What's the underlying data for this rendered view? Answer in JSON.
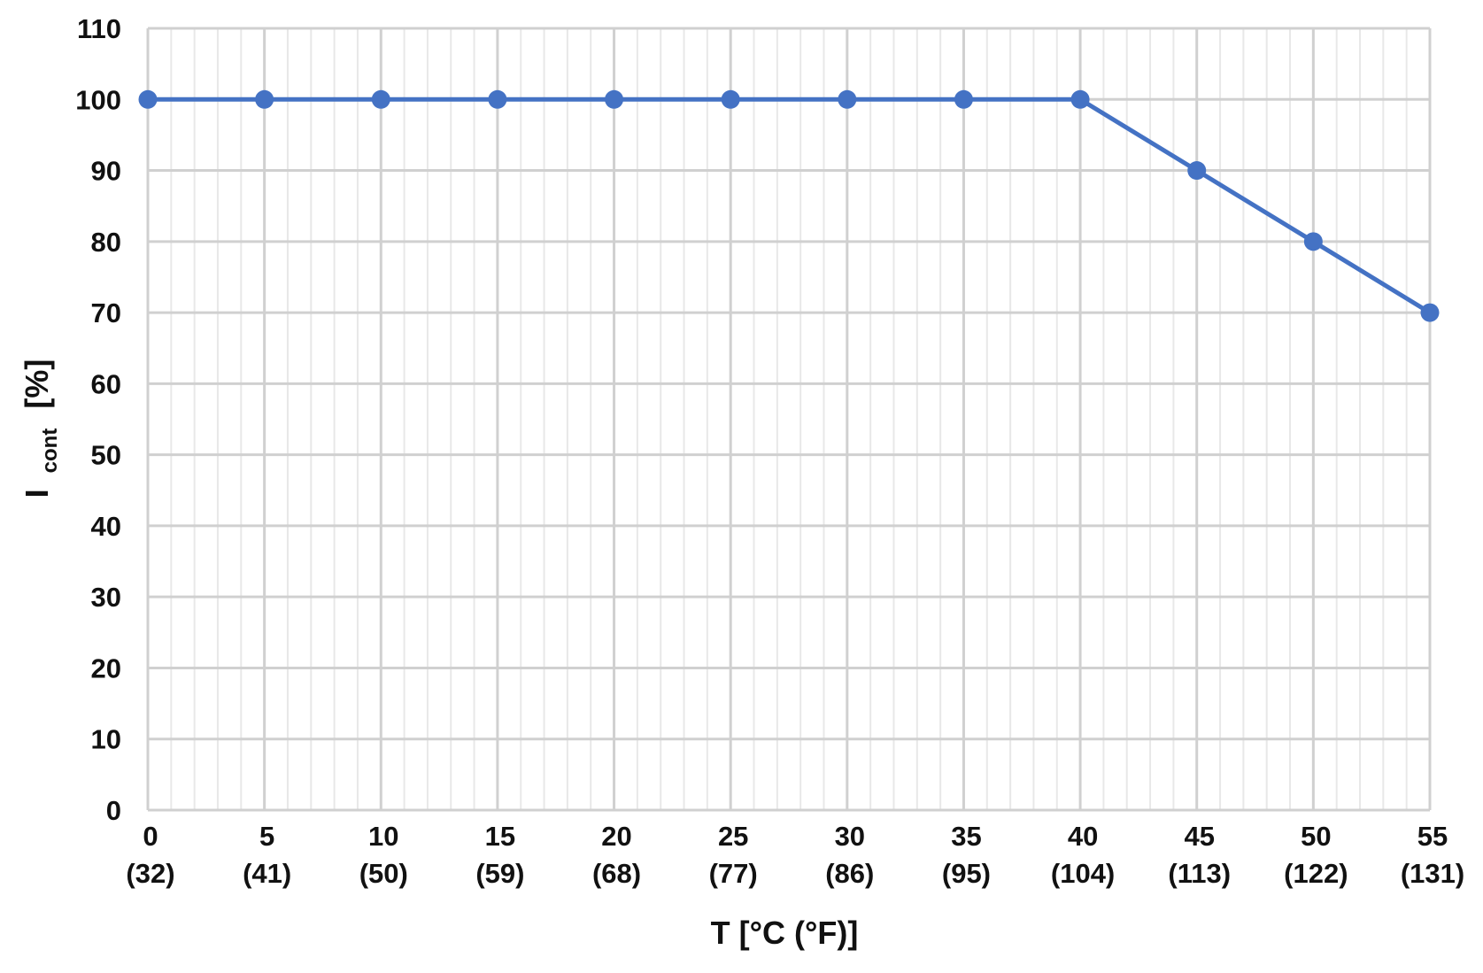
{
  "chart_data": {
    "type": "line",
    "title": "",
    "xlabel": "T [°C (°F)]",
    "ylabel": {
      "main": "I",
      "subscript": "cont",
      "unit": "[%]"
    },
    "xlim": [
      0,
      55
    ],
    "ylim": [
      0,
      110
    ],
    "x_major_step": 5,
    "x_minor_step": 1,
    "y_major_step": 10,
    "y_minor_step": 10,
    "grid": true,
    "legend": "none",
    "x_tick_labels": [
      {
        "value": 0,
        "celsius": "0",
        "fahrenheit": "(32)"
      },
      {
        "value": 5,
        "celsius": "5",
        "fahrenheit": "(41)"
      },
      {
        "value": 10,
        "celsius": "10",
        "fahrenheit": "(50)"
      },
      {
        "value": 15,
        "celsius": "15",
        "fahrenheit": "(59)"
      },
      {
        "value": 20,
        "celsius": "20",
        "fahrenheit": "(68)"
      },
      {
        "value": 25,
        "celsius": "25",
        "fahrenheit": "(77)"
      },
      {
        "value": 30,
        "celsius": "30",
        "fahrenheit": "(86)"
      },
      {
        "value": 35,
        "celsius": "35",
        "fahrenheit": "(95)"
      },
      {
        "value": 40,
        "celsius": "40",
        "fahrenheit": "(104)"
      },
      {
        "value": 45,
        "celsius": "45",
        "fahrenheit": "(113)"
      },
      {
        "value": 50,
        "celsius": "50",
        "fahrenheit": "(122)"
      },
      {
        "value": 55,
        "celsius": "55",
        "fahrenheit": "(131)"
      }
    ],
    "y_tick_labels": [
      "0",
      "10",
      "20",
      "30",
      "40",
      "50",
      "60",
      "70",
      "80",
      "90",
      "100",
      "110"
    ],
    "series": [
      {
        "color": "#4472c4",
        "x": [
          0,
          5,
          10,
          15,
          20,
          25,
          30,
          35,
          40,
          45,
          50,
          55
        ],
        "y": [
          100,
          100,
          100,
          100,
          100,
          100,
          100,
          100,
          100,
          90,
          80,
          70
        ]
      }
    ]
  }
}
